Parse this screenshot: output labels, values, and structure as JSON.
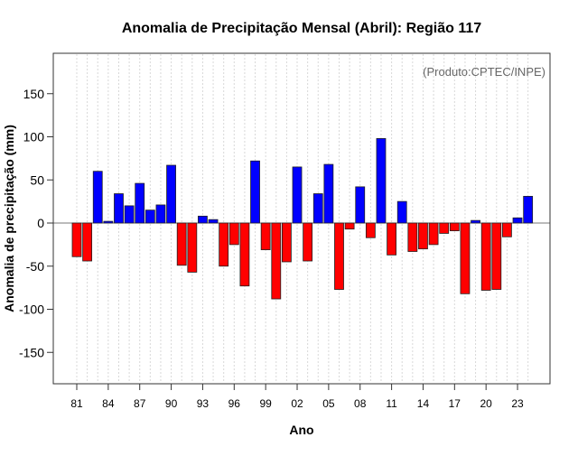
{
  "chart_data": {
    "type": "bar",
    "title": "Anomalia de Precipitação Mensal (Abril): Região 117",
    "annotation": "(Produto:CPTEC/INPE)",
    "xlabel": "Ano",
    "ylabel": "Anomalia de precipitação (mm)",
    "ylim": [
      -190,
      195
    ],
    "yticks": [
      -150,
      -100,
      -50,
      0,
      50,
      100,
      150
    ],
    "categories": [
      "1981",
      "1982",
      "1983",
      "1984",
      "1985",
      "1986",
      "1987",
      "1988",
      "1989",
      "1990",
      "1991",
      "1992",
      "1993",
      "1994",
      "1995",
      "1996",
      "1997",
      "1998",
      "1999",
      "2000",
      "2001",
      "2002",
      "2003",
      "2004",
      "2005",
      "2006",
      "2007",
      "2008",
      "2009",
      "2010",
      "2011",
      "2012",
      "2013",
      "2014",
      "2015",
      "2016",
      "2017",
      "2018",
      "2019",
      "2020",
      "2021",
      "2022",
      "2023",
      "2024"
    ],
    "xtick_labels": [
      "81",
      "84",
      "87",
      "90",
      "93",
      "96",
      "99",
      "02",
      "05",
      "08",
      "11",
      "14",
      "17",
      "20",
      "23"
    ],
    "values": [
      -39,
      -44,
      60,
      2,
      34,
      20,
      46,
      15,
      21,
      67,
      -49,
      -57,
      8,
      4,
      -50,
      -25,
      -73,
      72,
      -31,
      -88,
      -45,
      65,
      -44,
      34,
      68,
      -77,
      -7,
      42,
      -17,
      98,
      -37,
      25,
      -33,
      -30,
      -25,
      -12,
      -9,
      -82,
      3,
      -78,
      -77,
      -16,
      6,
      31
    ],
    "grid": "vertical dotted",
    "colors": {
      "positive": "#0000ff",
      "negative": "#ff0000"
    }
  }
}
